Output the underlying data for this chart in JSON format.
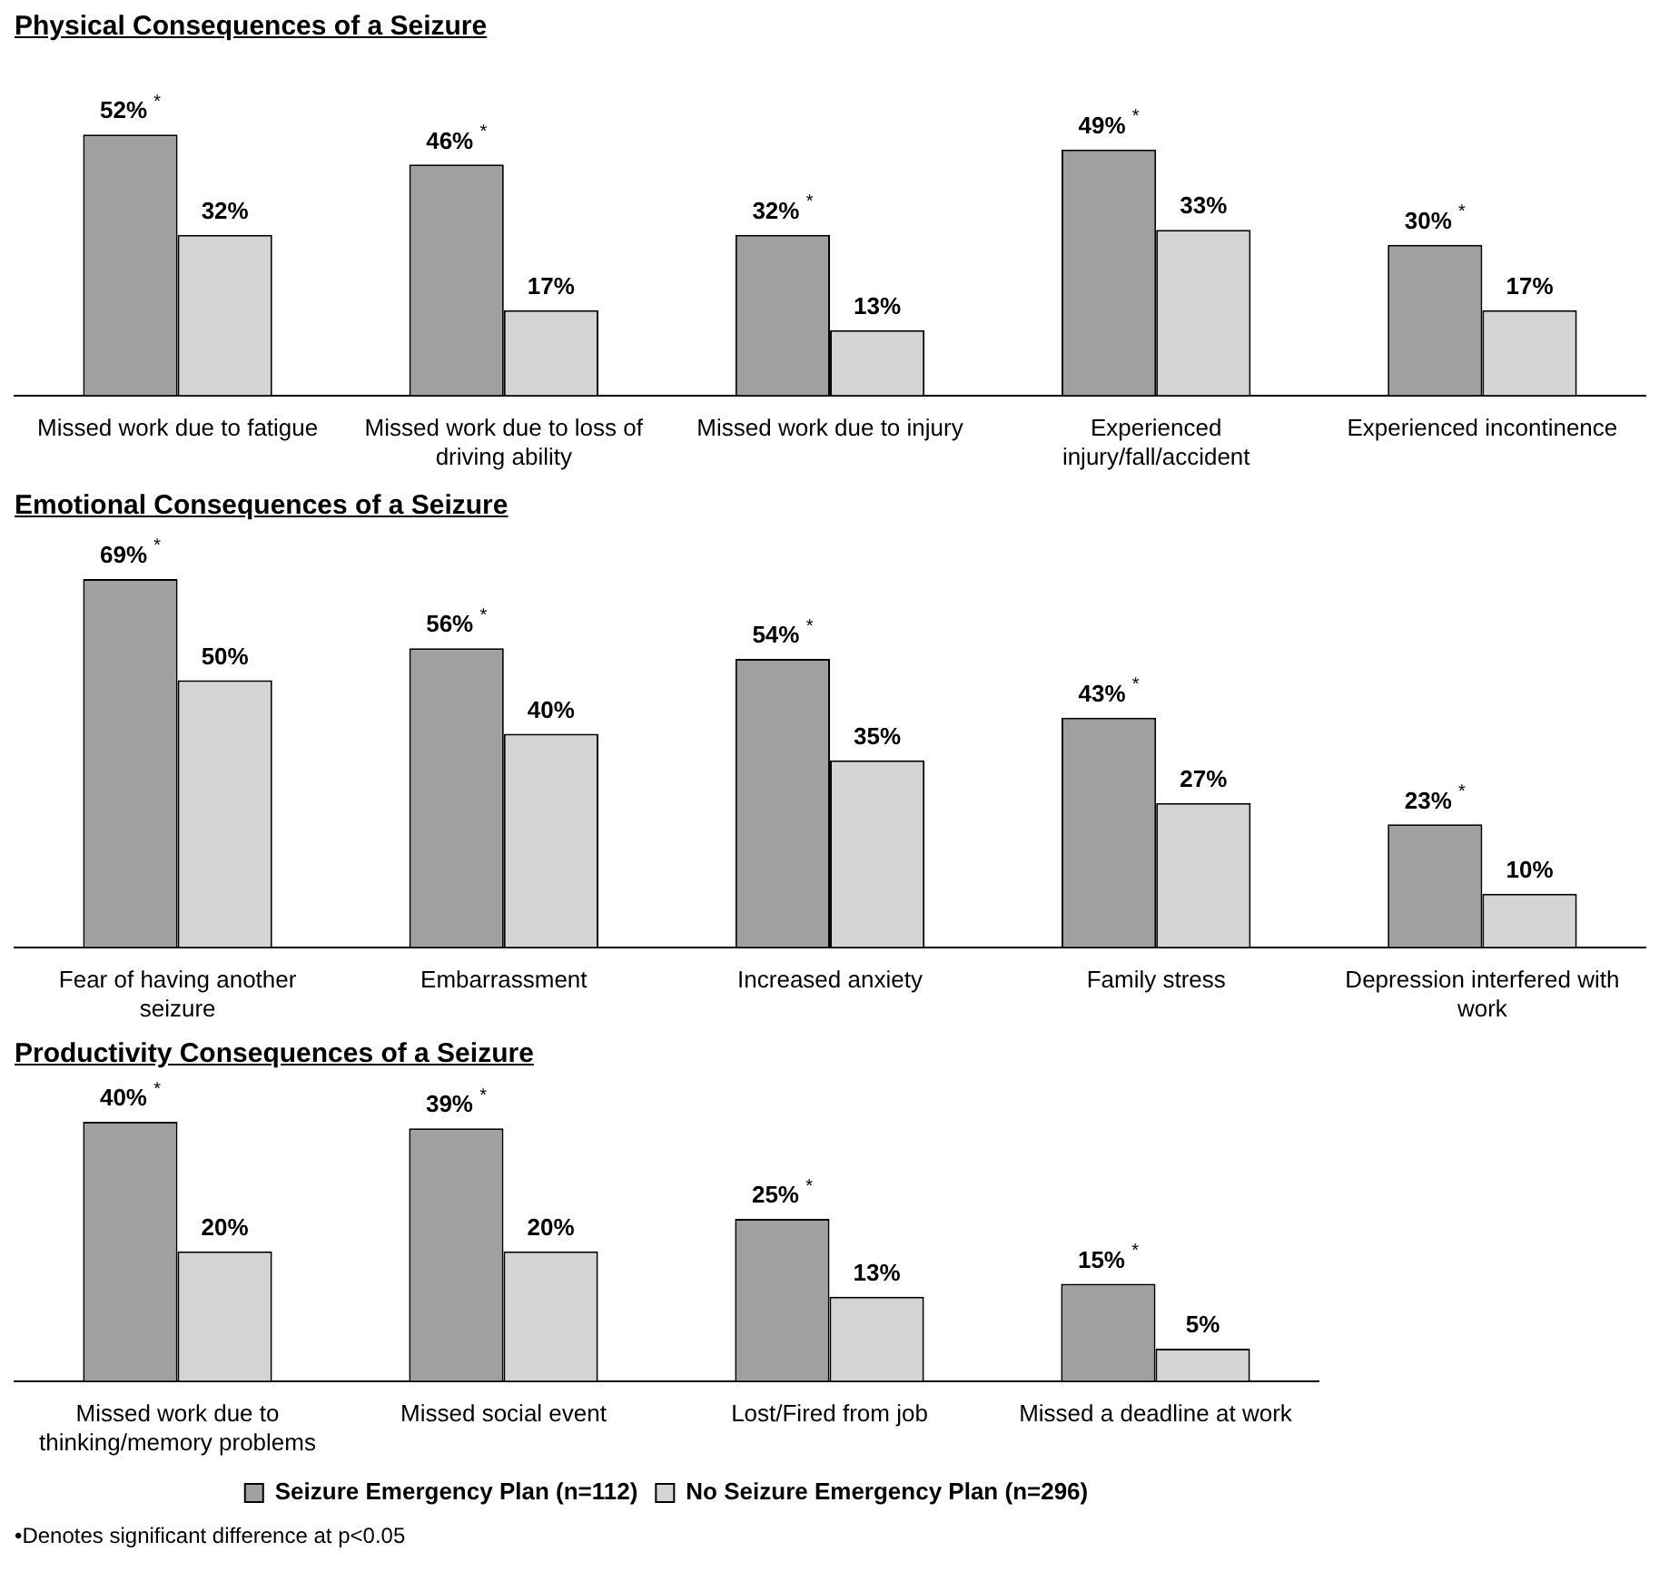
{
  "chart_data": [
    {
      "type": "bar",
      "title": "Physical Consequences of a Seizure",
      "categories": [
        "Missed work due to fatigue",
        "Missed work due to loss of driving ability",
        "Missed work due to injury",
        "Experienced injury/fall/accident",
        "Experienced incontinence"
      ],
      "series": [
        {
          "color": "#a0a0a0",
          "values": [
            52,
            46,
            32,
            49,
            30
          ],
          "value_labels": [
            "52% $^{*}$",
            "46% $^{*}$",
            "32% $^{*}$",
            "49% $^{*}$",
            "30% $^{*}$"
          ]
        },
        {
          "color": "#d4d4d4",
          "values": [
            32,
            17,
            13,
            33,
            17
          ],
          "value_labels": [
            "32%",
            "17%",
            "13%",
            "33%",
            "17%"
          ]
        }
      ],
      "tick_labels": "x",
      "grid": false,
      "legend": false
    },
    {
      "type": "bar",
      "title": "Emotional Consequences of a Seizure",
      "categories": [
        "Fear of having another seizure",
        "Embarrassment",
        "Increased anxiety",
        "Family stress",
        "Depression interfered with work"
      ],
      "series": [
        {
          "color": "#a0a0a0",
          "values": [
            69,
            56,
            54,
            43,
            23
          ],
          "value_labels": [
            "69% $^{*}$",
            "56% $^{*}$",
            "54% $^{*}$",
            "43% $^{*}$",
            "23% $^{*}$"
          ]
        },
        {
          "color": "#d4d4d4",
          "values": [
            50,
            40,
            35,
            27,
            10
          ],
          "value_labels": [
            "50%",
            "40%",
            "35%",
            "27%",
            "10%"
          ]
        }
      ],
      "tick_labels": "x",
      "grid": false,
      "legend": false
    },
    {
      "type": "bar",
      "title": "Productivity Consequences of a Seizure",
      "categories": [
        "Missed work due to thinking/memory problems",
        "Missed social event",
        "Lost/Fired from job",
        "Missed a deadline at work"
      ],
      "series": [
        {
          "name": "Seizure Emergency Plan (n=112)",
          "color": "#a0a0a0",
          "values": [
            40,
            39,
            25,
            15
          ],
          "value_labels": [
            "40% $^{*}$",
            "39% $^{*}$",
            "25% $^{*}$",
            "15% $^{*}$"
          ]
        },
        {
          "name": "No Seizure Emergency Plan (n=296)",
          "color": "#d4d4d4",
          "values": [
            20,
            20,
            13,
            5
          ],
          "value_labels": [
            "20%",
            "20%",
            "13%",
            "5%"
          ]
        }
      ],
      "tick_labels": "x",
      "grid": false,
      "legend": "bottom",
      "annotations": [
        "•Denotes significant difference at p<0.05"
      ]
    }
  ]
}
